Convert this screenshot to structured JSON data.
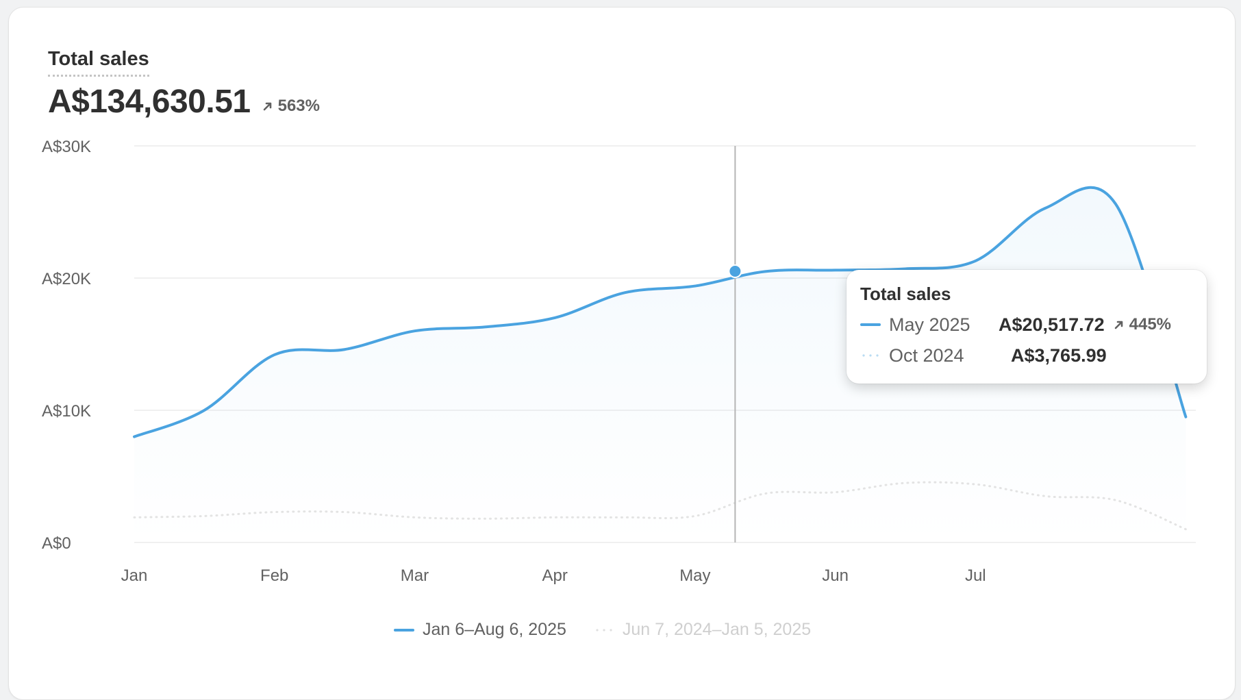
{
  "card": {
    "title": "Total sales",
    "value": "A$134,630.51",
    "change": "563%"
  },
  "chart_data": {
    "type": "area",
    "title": "Total sales",
    "x_ticks": [
      "Jan",
      "Feb",
      "Mar",
      "Apr",
      "May",
      "Jun",
      "Jul"
    ],
    "y_ticks": [
      "A$0",
      "A$10K",
      "A$20K",
      "A$30K"
    ],
    "ylim": [
      0,
      30000
    ],
    "grid": true,
    "legend_position": "bottom-center",
    "series": [
      {
        "name": "Jan 6–Aug 6, 2025",
        "style": "solid",
        "color": "#4aa3e0",
        "points": [
          {
            "x": "2025-01-06",
            "y": 8000
          },
          {
            "x": "2025-01-20",
            "y": 10000
          },
          {
            "x": "2025-02-03",
            "y": 14200
          },
          {
            "x": "2025-02-17",
            "y": 14600
          },
          {
            "x": "2025-03-03",
            "y": 16000
          },
          {
            "x": "2025-03-17",
            "y": 16300
          },
          {
            "x": "2025-03-31",
            "y": 17000
          },
          {
            "x": "2025-04-14",
            "y": 18900
          },
          {
            "x": "2025-04-28",
            "y": 19400
          },
          {
            "x": "2025-05-12",
            "y": 20500
          },
          {
            "x": "2025-05-26",
            "y": 20600
          },
          {
            "x": "2025-06-09",
            "y": 20700
          },
          {
            "x": "2025-06-23",
            "y": 21300
          },
          {
            "x": "2025-07-07",
            "y": 25300
          },
          {
            "x": "2025-07-21",
            "y": 25600
          },
          {
            "x": "2025-08-04",
            "y": 9500
          }
        ]
      },
      {
        "name": "Jun 7, 2024–Jan 5, 2025",
        "style": "dotted",
        "color": "#e3e3e3",
        "points": [
          {
            "x": "2025-01-06",
            "y": 1900
          },
          {
            "x": "2025-01-20",
            "y": 2000
          },
          {
            "x": "2025-02-03",
            "y": 2300
          },
          {
            "x": "2025-02-17",
            "y": 2300
          },
          {
            "x": "2025-03-03",
            "y": 1900
          },
          {
            "x": "2025-03-17",
            "y": 1800
          },
          {
            "x": "2025-03-31",
            "y": 1900
          },
          {
            "x": "2025-04-14",
            "y": 1900
          },
          {
            "x": "2025-04-28",
            "y": 2000
          },
          {
            "x": "2025-05-12",
            "y": 3700
          },
          {
            "x": "2025-05-26",
            "y": 3800
          },
          {
            "x": "2025-06-09",
            "y": 4500
          },
          {
            "x": "2025-06-23",
            "y": 4400
          },
          {
            "x": "2025-07-07",
            "y": 3500
          },
          {
            "x": "2025-07-21",
            "y": 3200
          },
          {
            "x": "2025-08-04",
            "y": 1000
          }
        ]
      }
    ],
    "hover": {
      "x": "2025-05-06",
      "y": 20517.72
    }
  },
  "tooltip": {
    "title": "Total sales",
    "rows": [
      {
        "period": "May 2025",
        "value": "A$20,517.72",
        "change": "445%"
      },
      {
        "period": "Oct 2024",
        "value": "A$3,765.99"
      }
    ]
  },
  "legend": {
    "current": "Jan 6–Aug 6, 2025",
    "previous": "Jun 7, 2024–Jan 5, 2025"
  },
  "colors": {
    "accent": "#4aa3e0",
    "previous": "#e3e3e3"
  }
}
